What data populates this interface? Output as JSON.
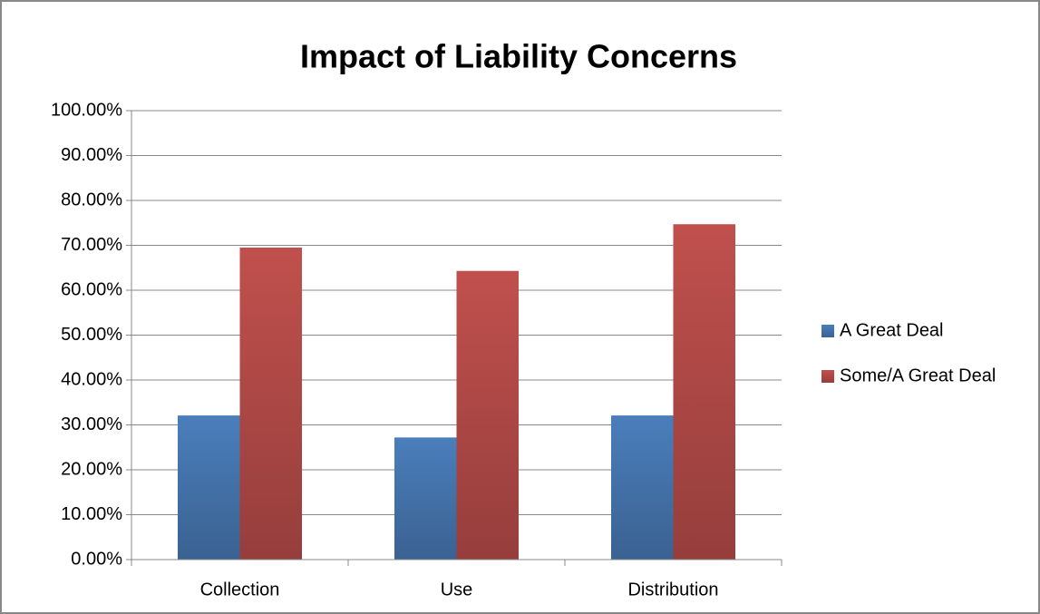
{
  "chart_data": {
    "type": "bar",
    "title": "Impact of Liability Concerns",
    "categories": [
      "Collection",
      "Use",
      "Distribution"
    ],
    "series": [
      {
        "name": "A Great Deal",
        "color": "#4a7ebb",
        "values": [
          32.1,
          27.2,
          32.1
        ]
      },
      {
        "name": "Some/A Great Deal",
        "color": "#c0504d",
        "values": [
          69.5,
          64.3,
          74.7
        ]
      }
    ],
    "ylim": [
      0,
      100
    ],
    "yticks": [
      {
        "value": 0,
        "label": "0.00%"
      },
      {
        "value": 10,
        "label": "10.00%"
      },
      {
        "value": 20,
        "label": "20.00%"
      },
      {
        "value": 30,
        "label": "30.00%"
      },
      {
        "value": 40,
        "label": "40.00%"
      },
      {
        "value": 50,
        "label": "50.00%"
      },
      {
        "value": 60,
        "label": "60.00%"
      },
      {
        "value": 70,
        "label": "70.00%"
      },
      {
        "value": 80,
        "label": "80.00%"
      },
      {
        "value": 90,
        "label": "90.00%"
      },
      {
        "value": 100,
        "label": "100.00%"
      }
    ],
    "grid": true,
    "legend": "right"
  }
}
